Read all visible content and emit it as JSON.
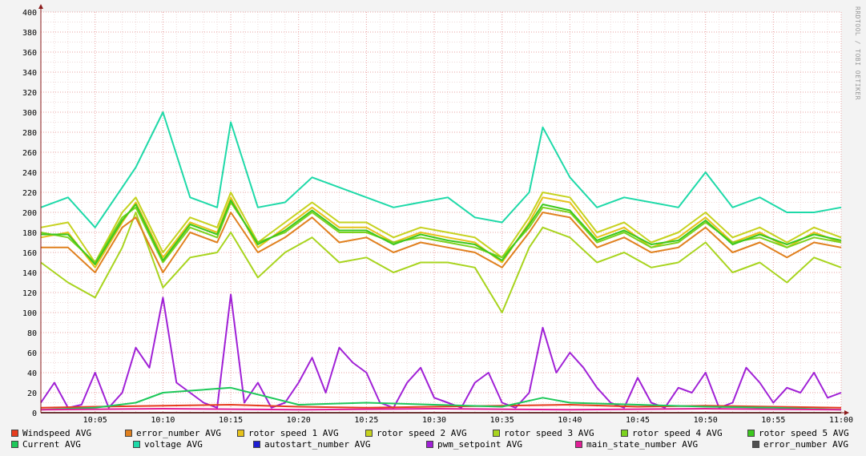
{
  "watermark": "RRDTOOL / TOBI OETIKER",
  "chart_data": {
    "type": "line",
    "ylim": [
      0,
      400
    ],
    "yticks": [
      0,
      20,
      40,
      60,
      80,
      100,
      120,
      140,
      160,
      180,
      200,
      220,
      240,
      260,
      280,
      300,
      320,
      340,
      360,
      380,
      400
    ],
    "grid": true,
    "legend_position": "bottom",
    "x_ticks": [
      "10:05",
      "10:10",
      "10:15",
      "10:20",
      "10:25",
      "10:30",
      "10:35",
      "10:40",
      "10:45",
      "10:50",
      "10:55",
      "11:00"
    ],
    "series": [
      {
        "name": "voltage AVG",
        "color": "#1ed9a8",
        "x": [
          "10:01",
          "10:03",
          "10:05",
          "10:07",
          "10:08",
          "10:10",
          "10:12",
          "10:14",
          "10:15",
          "10:17",
          "10:19",
          "10:21",
          "10:23",
          "10:25",
          "10:27",
          "10:29",
          "10:31",
          "10:33",
          "10:35",
          "10:37",
          "10:38",
          "10:40",
          "10:42",
          "10:44",
          "10:46",
          "10:48",
          "10:50",
          "10:52",
          "10:54",
          "10:56",
          "10:58",
          "11:00"
        ],
        "values": [
          205,
          215,
          185,
          225,
          245,
          300,
          215,
          205,
          290,
          205,
          210,
          235,
          225,
          215,
          205,
          210,
          215,
          195,
          190,
          220,
          285,
          235,
          205,
          215,
          210,
          205,
          240,
          205,
          215,
          200,
          200,
          205
        ]
      },
      {
        "name": "rotor speed 1 AVG",
        "color": "#e6c21a",
        "x": [
          "10:01",
          "10:03",
          "10:05",
          "10:07",
          "10:08",
          "10:10",
          "10:12",
          "10:14",
          "10:15",
          "10:17",
          "10:19",
          "10:21",
          "10:23",
          "10:25",
          "10:27",
          "10:29",
          "10:31",
          "10:33",
          "10:35",
          "10:37",
          "10:38",
          "10:40",
          "10:42",
          "10:44",
          "10:46",
          "10:48",
          "10:50",
          "10:52",
          "10:54",
          "10:56",
          "10:58",
          "11:00"
        ],
        "values": [
          175,
          180,
          145,
          190,
          210,
          155,
          190,
          180,
          215,
          165,
          185,
          205,
          185,
          185,
          170,
          180,
          175,
          170,
          150,
          190,
          215,
          210,
          175,
          185,
          165,
          175,
          195,
          170,
          180,
          165,
          180,
          170
        ]
      },
      {
        "name": "rotor speed 2 AVG",
        "color": "#c6d21e",
        "x": [
          "10:01",
          "10:03",
          "10:05",
          "10:07",
          "10:08",
          "10:10",
          "10:12",
          "10:14",
          "10:15",
          "10:17",
          "10:19",
          "10:21",
          "10:23",
          "10:25",
          "10:27",
          "10:29",
          "10:31",
          "10:33",
          "10:35",
          "10:37",
          "10:38",
          "10:40",
          "10:42",
          "10:44",
          "10:46",
          "10:48",
          "10:50",
          "10:52",
          "10:54",
          "10:56",
          "10:58",
          "11:00"
        ],
        "values": [
          185,
          190,
          150,
          200,
          215,
          160,
          195,
          185,
          220,
          170,
          190,
          210,
          190,
          190,
          175,
          185,
          180,
          175,
          155,
          195,
          220,
          215,
          180,
          190,
          170,
          180,
          200,
          175,
          185,
          170,
          185,
          175
        ]
      },
      {
        "name": "rotor speed 3 AVG",
        "color": "#a8d41e",
        "x": [
          "10:01",
          "10:03",
          "10:05",
          "10:07",
          "10:08",
          "10:10",
          "10:12",
          "10:14",
          "10:15",
          "10:17",
          "10:19",
          "10:21",
          "10:23",
          "10:25",
          "10:27",
          "10:29",
          "10:31",
          "10:33",
          "10:35",
          "10:37",
          "10:38",
          "10:40",
          "10:42",
          "10:44",
          "10:46",
          "10:48",
          "10:50",
          "10:52",
          "10:54",
          "10:56",
          "10:58",
          "11:00"
        ],
        "values": [
          150,
          130,
          115,
          165,
          200,
          125,
          155,
          160,
          180,
          135,
          160,
          175,
          150,
          155,
          140,
          150,
          150,
          145,
          100,
          165,
          185,
          175,
          150,
          160,
          145,
          150,
          170,
          140,
          150,
          130,
          155,
          145
        ]
      },
      {
        "name": "rotor speed 4 AVG",
        "color": "#7cd21e",
        "x": [
          "10:01",
          "10:03",
          "10:05",
          "10:07",
          "10:08",
          "10:10",
          "10:12",
          "10:14",
          "10:15",
          "10:17",
          "10:19",
          "10:21",
          "10:23",
          "10:25",
          "10:27",
          "10:29",
          "10:31",
          "10:33",
          "10:35",
          "10:37",
          "10:38",
          "10:40",
          "10:42",
          "10:44",
          "10:46",
          "10:48",
          "10:50",
          "10:52",
          "10:54",
          "10:56",
          "10:58",
          "11:00"
        ],
        "values": [
          180,
          175,
          150,
          195,
          205,
          150,
          185,
          175,
          210,
          170,
          180,
          200,
          180,
          180,
          170,
          175,
          170,
          165,
          155,
          185,
          205,
          200,
          170,
          180,
          165,
          170,
          190,
          170,
          175,
          165,
          175,
          170
        ]
      },
      {
        "name": "rotor speed 5 AVG",
        "color": "#3cc81e",
        "x": [
          "10:01",
          "10:03",
          "10:05",
          "10:07",
          "10:08",
          "10:10",
          "10:12",
          "10:14",
          "10:15",
          "10:17",
          "10:19",
          "10:21",
          "10:23",
          "10:25",
          "10:27",
          "10:29",
          "10:31",
          "10:33",
          "10:35",
          "10:37",
          "10:38",
          "10:40",
          "10:42",
          "10:44",
          "10:46",
          "10:48",
          "10:50",
          "10:52",
          "10:54",
          "10:56",
          "10:58",
          "11:00"
        ],
        "values": [
          178,
          178,
          148,
          192,
          208,
          152,
          188,
          178,
          212,
          168,
          182,
          202,
          182,
          182,
          168,
          178,
          172,
          168,
          152,
          188,
          208,
          202,
          172,
          182,
          168,
          172,
          192,
          168,
          178,
          168,
          178,
          172
        ]
      },
      {
        "name": "error_number AVG",
        "color": "#e0801e",
        "x": [
          "10:01",
          "10:03",
          "10:05",
          "10:07",
          "10:08",
          "10:10",
          "10:12",
          "10:14",
          "10:15",
          "10:17",
          "10:19",
          "10:21",
          "10:23",
          "10:25",
          "10:27",
          "10:29",
          "10:31",
          "10:33",
          "10:35",
          "10:37",
          "10:38",
          "10:40",
          "10:42",
          "10:44",
          "10:46",
          "10:48",
          "10:50",
          "10:52",
          "10:54",
          "10:56",
          "10:58",
          "11:00"
        ],
        "values": [
          165,
          165,
          140,
          185,
          195,
          140,
          180,
          170,
          200,
          160,
          175,
          195,
          170,
          175,
          160,
          170,
          165,
          160,
          145,
          180,
          200,
          195,
          165,
          175,
          160,
          165,
          185,
          160,
          170,
          155,
          170,
          165
        ]
      },
      {
        "name": "pwm_setpoint AVG",
        "color": "#a020d6",
        "x": [
          "10:01",
          "10:02",
          "10:03",
          "10:04",
          "10:05",
          "10:06",
          "10:07",
          "10:08",
          "10:09",
          "10:10",
          "10:11",
          "10:12",
          "10:13",
          "10:14",
          "10:15",
          "10:16",
          "10:17",
          "10:18",
          "10:19",
          "10:20",
          "10:21",
          "10:22",
          "10:23",
          "10:24",
          "10:25",
          "10:26",
          "10:27",
          "10:28",
          "10:29",
          "10:30",
          "10:31",
          "10:32",
          "10:33",
          "10:34",
          "10:35",
          "10:36",
          "10:37",
          "10:38",
          "10:39",
          "10:40",
          "10:41",
          "10:42",
          "10:43",
          "10:44",
          "10:45",
          "10:46",
          "10:47",
          "10:48",
          "10:49",
          "10:50",
          "10:51",
          "10:52",
          "10:53",
          "10:54",
          "10:55",
          "10:56",
          "10:57",
          "10:58",
          "10:59",
          "11:00"
        ],
        "values": [
          10,
          30,
          5,
          8,
          40,
          5,
          20,
          65,
          45,
          115,
          30,
          20,
          10,
          5,
          118,
          10,
          30,
          5,
          10,
          30,
          55,
          20,
          65,
          50,
          40,
          10,
          5,
          30,
          45,
          15,
          10,
          5,
          30,
          40,
          10,
          5,
          20,
          85,
          40,
          60,
          45,
          25,
          10,
          5,
          35,
          10,
          5,
          25,
          20,
          40,
          5,
          10,
          45,
          30,
          10,
          25,
          20,
          40,
          15,
          20
        ]
      },
      {
        "name": "Windspeed AVG",
        "color": "#e63c1e",
        "x": [
          "10:01",
          "10:05",
          "10:10",
          "10:15",
          "10:20",
          "10:25",
          "10:30",
          "10:35",
          "10:40",
          "10:45",
          "10:50",
          "10:55",
          "11:00"
        ],
        "values": [
          5,
          6,
          7,
          8,
          6,
          5,
          6,
          7,
          8,
          6,
          7,
          6,
          5
        ]
      },
      {
        "name": "Current AVG",
        "color": "#1ec85a",
        "x": [
          "10:01",
          "10:05",
          "10:08",
          "10:10",
          "10:15",
          "10:20",
          "10:25",
          "10:30",
          "10:35",
          "10:38",
          "10:40",
          "10:45",
          "10:50",
          "10:55",
          "11:00"
        ],
        "values": [
          3,
          5,
          10,
          20,
          25,
          8,
          10,
          8,
          6,
          15,
          10,
          8,
          6,
          5,
          3
        ]
      },
      {
        "name": "autostart_number AVG",
        "color": "#1e1ed2",
        "x": [
          "10:01",
          "11:00"
        ],
        "values": [
          0,
          0
        ]
      },
      {
        "name": "main_state_number AVG",
        "color": "#e01e96",
        "x": [
          "10:01",
          "10:10",
          "10:20",
          "10:30",
          "10:40",
          "10:50",
          "11:00"
        ],
        "values": [
          3,
          4,
          3,
          4,
          3,
          4,
          3
        ]
      },
      {
        "name": "error_number AVG",
        "color": "#505050",
        "x": [
          "10:01",
          "11:00"
        ],
        "values": [
          0,
          0
        ]
      }
    ]
  },
  "legend": {
    "row1": [
      {
        "label": "Windspeed AVG",
        "color": "#e63c1e"
      },
      {
        "label": "error_number AVG",
        "color": "#e0801e"
      },
      {
        "label": "rotor speed 1 AVG",
        "color": "#e6c21a"
      },
      {
        "label": "rotor speed 2 AVG",
        "color": "#c6d21e"
      },
      {
        "label": "rotor speed 3 AVG",
        "color": "#a8d41e"
      },
      {
        "label": "rotor speed 4 AVG",
        "color": "#7cd21e"
      },
      {
        "label": "rotor speed 5 AVG",
        "color": "#3cc81e"
      }
    ],
    "row2": [
      {
        "label": "Current AVG",
        "color": "#1ec85a"
      },
      {
        "label": "voltage AVG",
        "color": "#1ed9a8"
      },
      {
        "label": "autostart_number AVG",
        "color": "#1e1ed2"
      },
      {
        "label": "pwm_setpoint AVG",
        "color": "#a020d6"
      },
      {
        "label": "main_state_number AVG",
        "color": "#e01e96"
      },
      {
        "label": "error_number AVG",
        "color": "#505050"
      }
    ]
  }
}
